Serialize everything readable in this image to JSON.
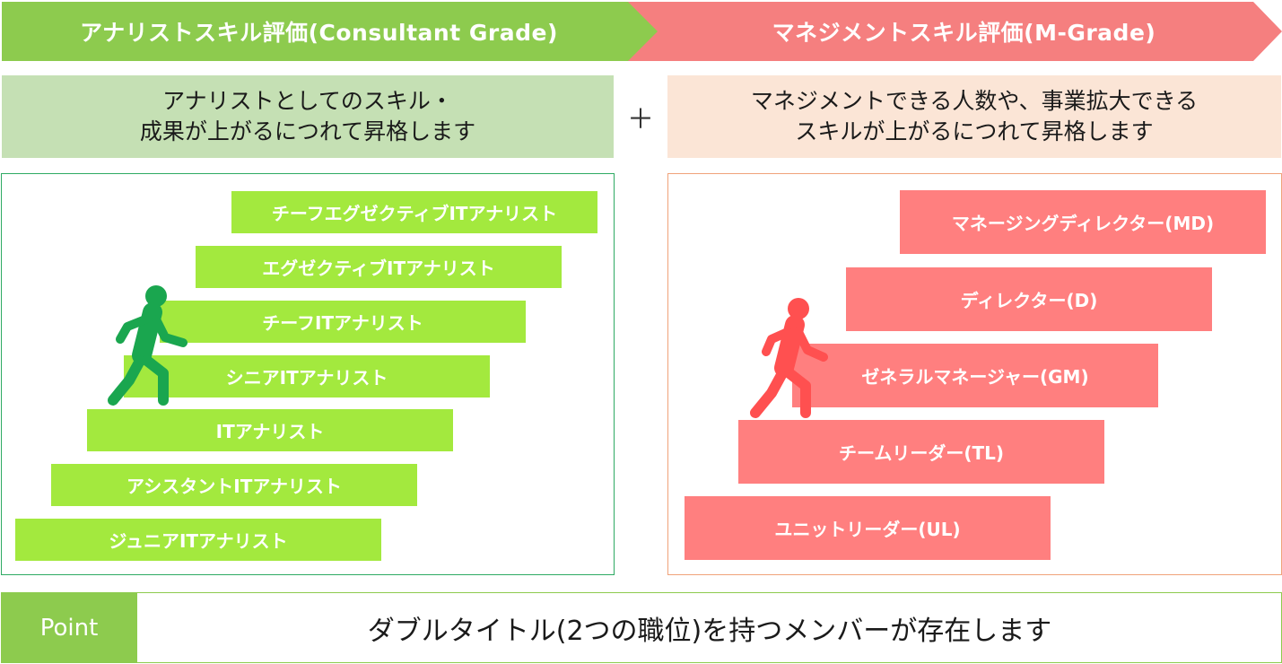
{
  "header": {
    "left_title": "アナリストスキル評価(Consultant  Grade)",
    "right_title": "マネジメントスキル評価(M-Grade)",
    "left_color": "#8dcb4e",
    "right_color": "#f57f7f"
  },
  "descriptions": {
    "left_line1": "アナリストとしてのスキル・",
    "left_line2": "成果が上がるにつれて昇格します",
    "plus": "＋",
    "right_line1": "マネジメントできる人数や、事業拡大できる",
    "right_line2": "スキルが上がるにつれて昇格します"
  },
  "analyst_grades": [
    "チーフエグゼクティブITアナリスト",
    "エグゼクティブITアナリスト",
    "チーフITアナリスト",
    "シニアITアナリスト",
    "ITアナリスト",
    "アシスタントITアナリスト",
    "ジュニアITアナリスト"
  ],
  "management_grades": [
    "マネージングディレクター(MD)",
    "ディレクター(D)",
    "ゼネラルマネージャー(GM)",
    "チームリーダー(TL)",
    "ユニットリーダー(UL)"
  ],
  "icons": {
    "left_figure": "walking-person-icon",
    "right_figure": "walking-person-icon",
    "left_figure_color": "#1aa64f",
    "right_figure_color": "#ff5050"
  },
  "point": {
    "label": "Point",
    "text": "ダブルタイトル(2つの職位)を持つメンバーが存在します"
  }
}
